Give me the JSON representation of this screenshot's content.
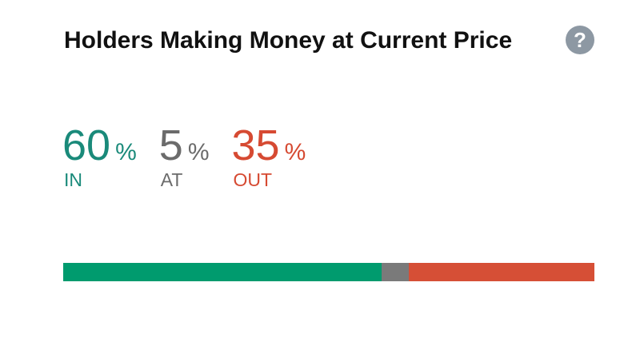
{
  "title": "Holders Making Money at Current Price",
  "help_icon": "question-circle-icon",
  "stats": [
    {
      "key": "in",
      "value": "60",
      "unit": "%",
      "label": "IN",
      "color": "#1a8a7a",
      "percent": 60
    },
    {
      "key": "at",
      "value": "5",
      "unit": "%",
      "label": "AT",
      "color": "#6b6b6b",
      "percent": 5
    },
    {
      "key": "out",
      "value": "35",
      "unit": "%",
      "label": "OUT",
      "color": "#d64a32",
      "percent": 35
    }
  ],
  "bar_colors": [
    "#009b6e",
    "#7a7a7a",
    "#d64f36"
  ]
}
